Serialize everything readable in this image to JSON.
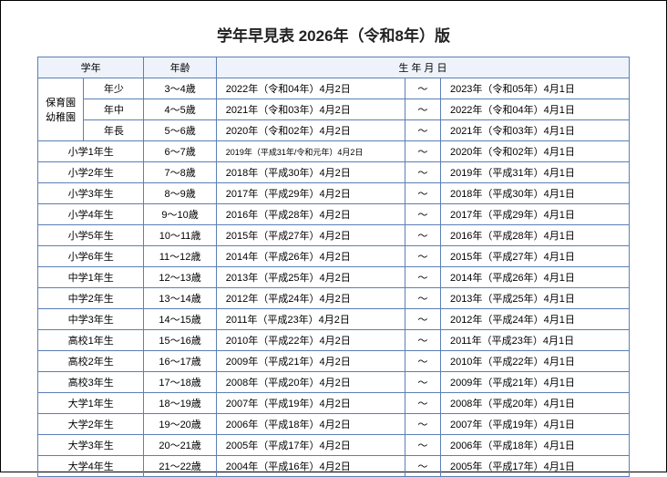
{
  "title": "学年早見表  2026年（令和8年）版",
  "header": {
    "grade": "学年",
    "age": "年齢",
    "birth": "生 年 月 日"
  },
  "kindergarten_label": "保育園\n幼稚園",
  "tilde": "～",
  "kinder_rows": [
    {
      "sub": "年少",
      "age": "3～4歳",
      "start": "2022年（令和04年）4月2日",
      "end": "2023年（令和05年）4月1日"
    },
    {
      "sub": "年中",
      "age": "4～5歳",
      "start": "2021年（令和03年）4月2日",
      "end": "2022年（令和04年）4月1日"
    },
    {
      "sub": "年長",
      "age": "5～6歳",
      "start": "2020年（令和02年）4月2日",
      "end": "2021年（令和03年）4月1日"
    }
  ],
  "rows": [
    {
      "grade": "小学1年生",
      "age": "6～7歳",
      "start": "2019年（平成31年/令和元年）4月2日",
      "start_small": true,
      "end": "2020年（令和02年）4月1日"
    },
    {
      "grade": "小学2年生",
      "age": "7～8歳",
      "start": "2018年（平成30年）4月2日",
      "end": "2019年（平成31年）4月1日"
    },
    {
      "grade": "小学3年生",
      "age": "8～9歳",
      "start": "2017年（平成29年）4月2日",
      "end": "2018年（平成30年）4月1日"
    },
    {
      "grade": "小学4年生",
      "age": "9～10歳",
      "start": "2016年（平成28年）4月2日",
      "end": "2017年（平成29年）4月1日"
    },
    {
      "grade": "小学5年生",
      "age": "10～11歳",
      "start": "2015年（平成27年）4月2日",
      "end": "2016年（平成28年）4月1日"
    },
    {
      "grade": "小学6年生",
      "age": "11～12歳",
      "start": "2014年（平成26年）4月2日",
      "end": "2015年（平成27年）4月1日"
    },
    {
      "grade": "中学1年生",
      "age": "12～13歳",
      "start": "2013年（平成25年）4月2日",
      "end": "2014年（平成26年）4月1日"
    },
    {
      "grade": "中学2年生",
      "age": "13～14歳",
      "start": "2012年（平成24年）4月2日",
      "end": "2013年（平成25年）4月1日"
    },
    {
      "grade": "中学3年生",
      "age": "14～15歳",
      "start": "2011年（平成23年）4月2日",
      "end": "2012年（平成24年）4月1日"
    },
    {
      "grade": "高校1年生",
      "age": "15～16歳",
      "start": "2010年（平成22年）4月2日",
      "end": "2011年（平成23年）4月1日"
    },
    {
      "grade": "高校2年生",
      "age": "16～17歳",
      "start": "2009年（平成21年）4月2日",
      "end": "2010年（平成22年）4月1日"
    },
    {
      "grade": "高校3年生",
      "age": "17～18歳",
      "start": "2008年（平成20年）4月2日",
      "end": "2009年（平成21年）4月1日"
    },
    {
      "grade": "大学1年生",
      "age": "18～19歳",
      "start": "2007年（平成19年）4月2日",
      "end": "2008年（平成20年）4月1日"
    },
    {
      "grade": "大学2年生",
      "age": "19～20歳",
      "start": "2006年（平成18年）4月2日",
      "end": "2007年（平成19年）4月1日"
    },
    {
      "grade": "大学3年生",
      "age": "20～21歳",
      "start": "2005年（平成17年）4月2日",
      "end": "2006年（平成18年）4月1日"
    },
    {
      "grade": "大学4年生",
      "age": "21～22歳",
      "start": "2004年（平成16年）4月2日",
      "end": "2005年（平成17年）4月1日"
    }
  ]
}
